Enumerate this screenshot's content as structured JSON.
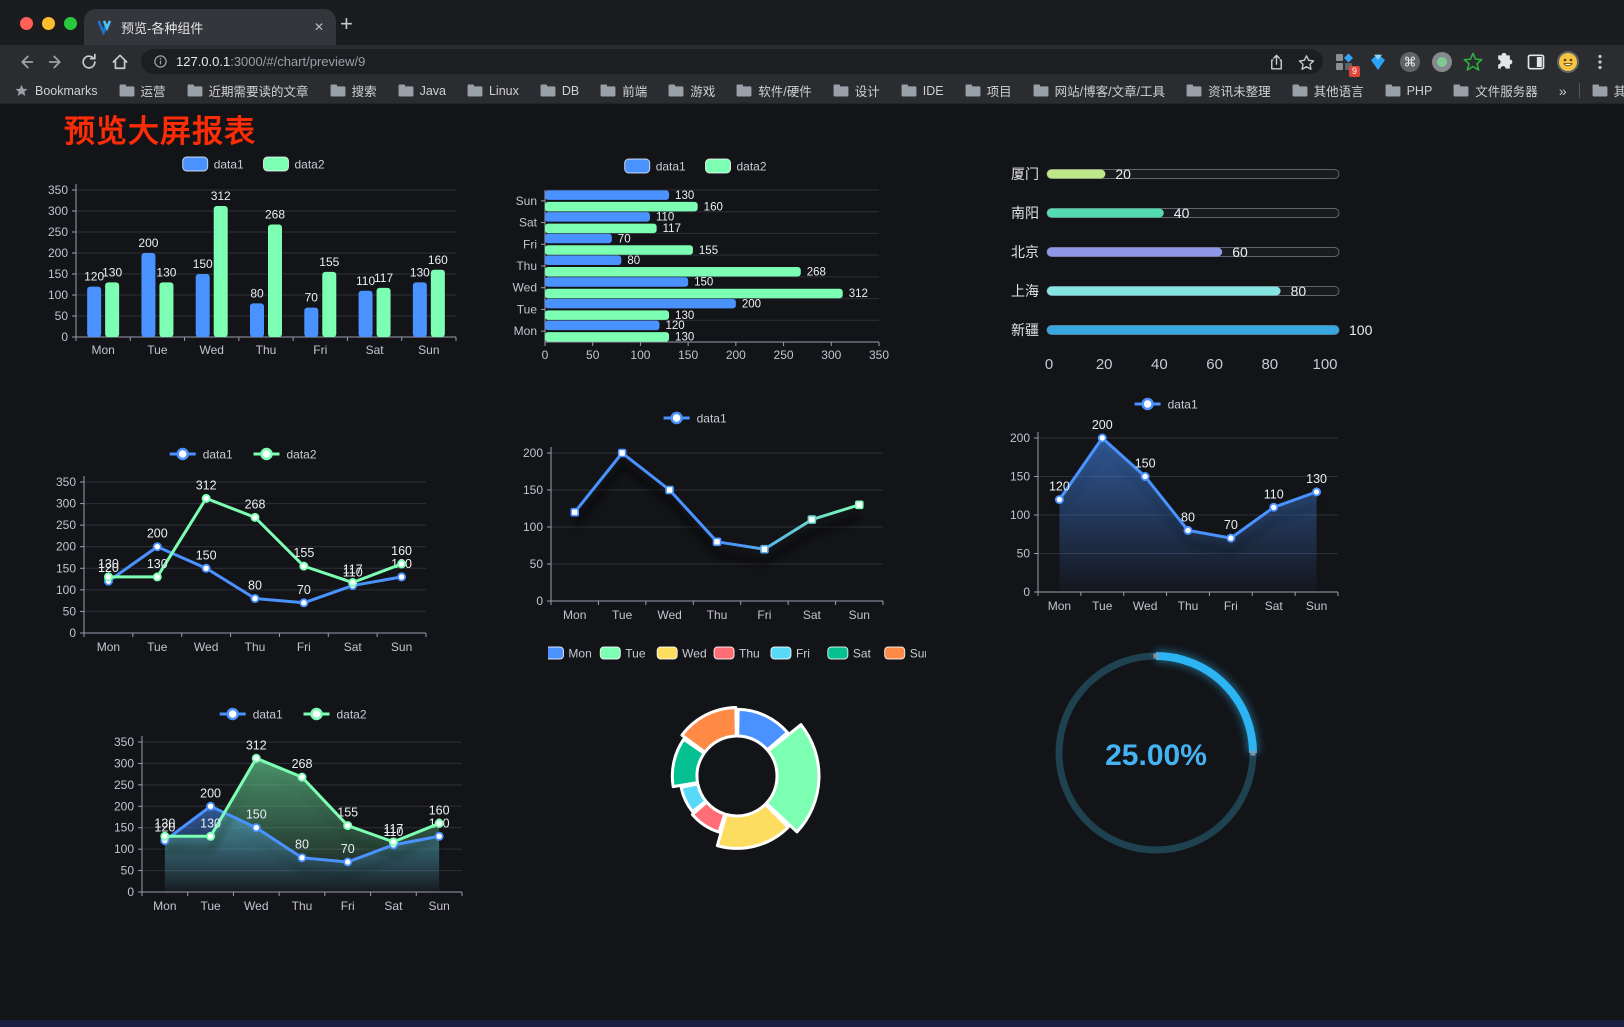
{
  "browser": {
    "tab_title": "预览-各种组件",
    "close_glyph": "✕",
    "new_tab_glyph": "+",
    "url": {
      "host": "127.0.0.1",
      "rest": ":3000/#/chart/preview/9"
    },
    "extensions_badge": "9",
    "bookmarks_label": "Bookmarks",
    "bookmark_folders": [
      "运营",
      "近期需要读的文章",
      "搜索",
      "Java",
      "Linux",
      "DB",
      "前端",
      "游戏",
      "软件/硬件",
      "设计",
      "IDE",
      "项目",
      "网站/博客/文章/工具",
      "资讯未整理",
      "其他语言",
      "PHP",
      "文件服务器"
    ],
    "overflow_glyph": "»",
    "other_bookmarks": "其他书签"
  },
  "page": {
    "title": "预览大屏报表",
    "title_color": "#fb2c06"
  },
  "theme": {
    "background": "#131418",
    "axis_line": "#9d9dab",
    "grid_line": "#2e2f39",
    "tick_text": "#c3c4ce",
    "value_label": "#eceef2",
    "legend_text": "#c9cad3"
  },
  "chart_data": [
    {
      "id": "grouped-bar",
      "type": "bar",
      "categories": [
        "Mon",
        "Tue",
        "Wed",
        "Thu",
        "Fri",
        "Sat",
        "Sun"
      ],
      "series": [
        {
          "name": "data1",
          "color": "#4992ff",
          "values": [
            120,
            200,
            150,
            80,
            70,
            110,
            130
          ]
        },
        {
          "name": "data2",
          "color": "#7cffb2",
          "values": [
            130,
            130,
            312,
            268,
            155,
            117,
            160
          ]
        }
      ],
      "ylim": [
        0,
        350
      ],
      "ytick": 50,
      "legend_position": "top",
      "grid": true
    },
    {
      "id": "horizontal-bar",
      "type": "bar-horizontal",
      "categories": [
        "Mon",
        "Tue",
        "Wed",
        "Thu",
        "Fri",
        "Sat",
        "Sun"
      ],
      "series": [
        {
          "name": "data1",
          "color": "#4992ff",
          "values": [
            120,
            200,
            150,
            80,
            70,
            110,
            130
          ]
        },
        {
          "name": "data2",
          "color": "#7cffb2",
          "values": [
            130,
            130,
            312,
            268,
            155,
            117,
            160
          ]
        }
      ],
      "xlim": [
        0,
        350
      ],
      "xtick": 50,
      "legend_position": "top"
    },
    {
      "id": "progress-list",
      "type": "progress",
      "rows": [
        {
          "label": "厦门",
          "value": 20,
          "color": "#bee787"
        },
        {
          "label": "南阳",
          "value": 40,
          "color": "#55dbb0"
        },
        {
          "label": "北京",
          "value": 60,
          "color": "#8e97e8"
        },
        {
          "label": "上海",
          "value": 80,
          "color": "#85e5e0"
        },
        {
          "label": "新疆",
          "value": 100,
          "color": "#38a7e0"
        }
      ],
      "max": 100,
      "xticks": [
        0,
        20,
        40,
        60,
        80,
        100
      ]
    },
    {
      "id": "line-two-series",
      "type": "line",
      "categories": [
        "Mon",
        "Tue",
        "Wed",
        "Thu",
        "Fri",
        "Sat",
        "Sun"
      ],
      "series": [
        {
          "name": "data1",
          "color": "#4992ff",
          "values": [
            120,
            200,
            150,
            80,
            70,
            110,
            130
          ]
        },
        {
          "name": "data2",
          "color": "#7cffb2",
          "values": [
            130,
            130,
            312,
            268,
            155,
            117,
            160
          ]
        }
      ],
      "ylim": [
        0,
        350
      ],
      "ytick": 50,
      "show_labels": true,
      "marker": "circle"
    },
    {
      "id": "line-gradient",
      "type": "line",
      "categories": [
        "Mon",
        "Tue",
        "Wed",
        "Thu",
        "Fri",
        "Sat",
        "Sun"
      ],
      "series": [
        {
          "name": "data1",
          "color": "#4992ff",
          "color_end": "#7cffb2",
          "values": [
            120,
            200,
            150,
            80,
            70,
            110,
            130
          ]
        }
      ],
      "ylim": [
        0,
        200
      ],
      "ytick": 50,
      "show_labels": false,
      "marker": "rect",
      "shadow": true
    },
    {
      "id": "area-single",
      "type": "line",
      "categories": [
        "Mon",
        "Tue",
        "Wed",
        "Thu",
        "Fri",
        "Sat",
        "Sun"
      ],
      "series": [
        {
          "name": "data1",
          "color": "#4992ff",
          "area": true,
          "values": [
            120,
            200,
            150,
            80,
            70,
            110,
            130
          ]
        }
      ],
      "ylim": [
        0,
        200
      ],
      "ytick": 50,
      "show_labels": true,
      "marker": "circle",
      "shadow": true
    },
    {
      "id": "area-two-series",
      "type": "line",
      "categories": [
        "Mon",
        "Tue",
        "Wed",
        "Thu",
        "Fri",
        "Sat",
        "Sun"
      ],
      "series": [
        {
          "name": "data1",
          "color": "#4992ff",
          "area": true,
          "values": [
            120,
            200,
            150,
            80,
            70,
            110,
            130
          ]
        },
        {
          "name": "data2",
          "color": "#7cffb2",
          "area": true,
          "values": [
            130,
            130,
            312,
            268,
            155,
            117,
            160
          ]
        }
      ],
      "ylim": [
        0,
        350
      ],
      "ytick": 50,
      "show_labels": true,
      "marker": "circle",
      "shadow": true
    },
    {
      "id": "rose-pie",
      "type": "pie",
      "legend": [
        "Mon",
        "Tue",
        "Wed",
        "Thu",
        "Fri",
        "Sat",
        "Sun"
      ],
      "values": [
        120,
        200,
        150,
        80,
        70,
        110,
        130
      ],
      "colors": [
        "#4992ff",
        "#7cffb2",
        "#fddd60",
        "#ff6e76",
        "#58d9f9",
        "#05c091",
        "#ff8a45"
      ],
      "rose": true,
      "donut": true
    },
    {
      "id": "gauge",
      "type": "gauge",
      "value_label": "25.00%",
      "percent": 25,
      "color": "#2cb5f2",
      "track_color": "#1f4250"
    }
  ]
}
